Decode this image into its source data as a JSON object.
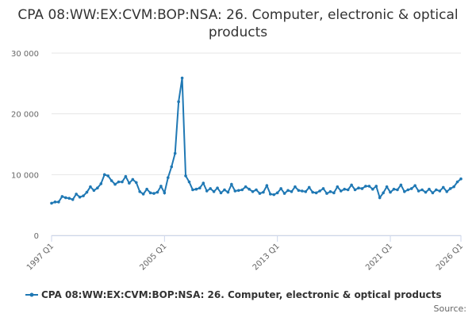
{
  "chart_data": {
    "type": "line",
    "title": "CPA 08:WW:EX:CVM:BOP:NSA: 26. Computer, electronic & optical products",
    "source": "Source:",
    "categories": [
      "1997 Q1",
      null,
      null,
      null,
      null,
      null,
      null,
      null,
      null,
      null,
      null,
      null,
      null,
      null,
      null,
      null,
      null,
      null,
      null,
      null,
      null,
      null,
      null,
      null,
      null,
      null,
      null,
      null,
      null,
      null,
      null,
      null,
      "2005 Q1",
      null,
      null,
      null,
      null,
      null,
      null,
      null,
      null,
      null,
      null,
      null,
      null,
      null,
      null,
      null,
      null,
      null,
      null,
      null,
      null,
      null,
      null,
      null,
      null,
      null,
      null,
      null,
      null,
      null,
      null,
      null,
      "2013 Q1",
      null,
      null,
      null,
      null,
      null,
      null,
      null,
      null,
      null,
      null,
      null,
      null,
      null,
      null,
      null,
      null,
      null,
      null,
      null,
      null,
      null,
      null,
      null,
      null,
      null,
      null,
      null,
      null,
      null,
      null,
      null,
      "2021 Q1",
      null,
      null,
      null,
      null,
      null,
      null,
      null,
      null,
      null,
      null,
      null,
      null,
      null,
      null,
      null,
      null,
      null,
      null,
      null,
      "2026 Q1"
    ],
    "series": [
      {
        "name": "CPA 08:WW:EX:CVM:BOP:NSA: 26. Computer, electronic & optical products",
        "color": "#1f78b4",
        "values": [
          5300,
          5500,
          5500,
          6400,
          6200,
          6100,
          5900,
          6800,
          6300,
          6500,
          7100,
          8000,
          7400,
          7800,
          8500,
          10000,
          9800,
          9000,
          8400,
          8800,
          8800,
          9700,
          8600,
          9200,
          8700,
          7200,
          6800,
          7600,
          7000,
          6900,
          7100,
          8100,
          7000,
          9500,
          11300,
          13500,
          22000,
          25900,
          9800,
          8800,
          7500,
          7600,
          7800,
          8600,
          7300,
          7700,
          7200,
          7800,
          7000,
          7500,
          7100,
          8400,
          7300,
          7400,
          7500,
          8000,
          7600,
          7200,
          7500,
          6900,
          7100,
          8200,
          6800,
          6700,
          7000,
          7700,
          6900,
          7400,
          7200,
          8000,
          7400,
          7300,
          7200,
          7900,
          7100,
          7000,
          7300,
          7700,
          6900,
          7200,
          7000,
          8000,
          7300,
          7600,
          7500,
          8300,
          7500,
          7800,
          7700,
          8100,
          8100,
          7600,
          8100,
          6200,
          7000,
          8000,
          7100,
          7600,
          7500,
          8300,
          7200,
          7500,
          7700,
          8200,
          7300,
          7500,
          7100,
          7600,
          7000,
          7500,
          7300,
          7900,
          7200,
          7700,
          8000,
          8800,
          9300
        ]
      }
    ],
    "ylim": [
      0,
      30000
    ],
    "yticks": [
      0,
      {
        "value": 10000,
        "label": "10 000"
      },
      {
        "value": 20000,
        "label": "20 000"
      },
      {
        "value": 30000,
        "label": "30 000"
      }
    ],
    "grid": true
  }
}
